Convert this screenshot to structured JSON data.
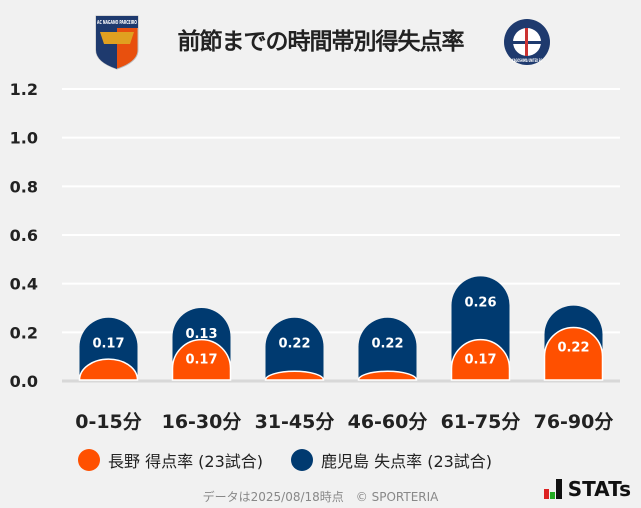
{
  "header": {
    "title": "前節までの時間帯別得失点率",
    "home_logo_text": "AC NAGANO PARCEIRO",
    "away_logo_text": "KAGOSHIMA UNITED FC"
  },
  "chart_data": {
    "type": "bar",
    "stacked": true,
    "categories": [
      "0-15分",
      "16-30分",
      "31-45分",
      "46-60分",
      "61-75分",
      "76-90分"
    ],
    "series": [
      {
        "name": "長野 得点率 (23試合)",
        "color": "#ff5000",
        "values": [
          0.09,
          0.17,
          0.04,
          0.04,
          0.17,
          0.22
        ],
        "labels": [
          "",
          "0.17",
          "",
          "",
          "0.17",
          "0.22"
        ]
      },
      {
        "name": "鹿児島 失点率 (23試合)",
        "color": "#003a70",
        "values": [
          0.17,
          0.13,
          0.22,
          0.22,
          0.26,
          0.09
        ],
        "labels": [
          "0.17",
          "0.13",
          "0.22",
          "0.22",
          "0.26",
          ""
        ]
      }
    ],
    "ylim": [
      0,
      1.2
    ],
    "yticks": [
      "0.0",
      "0.2",
      "0.4",
      "0.6",
      "0.8",
      "1.0",
      "1.2"
    ],
    "grid": true,
    "legend": "bottom"
  },
  "footer": {
    "note": "データは2025/08/18時点　© SPORTERIA",
    "brand": "STATs"
  }
}
